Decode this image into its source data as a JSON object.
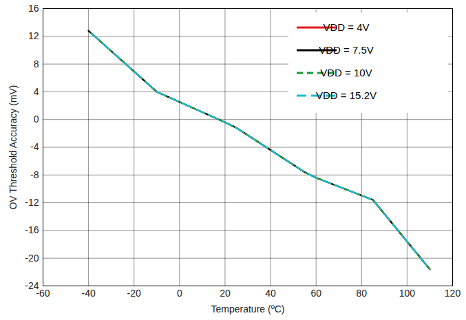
{
  "chart_data": {
    "type": "line",
    "x_label": "Temperature (ºC)",
    "y_label": "OV Threshold Accuracy (mV)",
    "x": [
      -40,
      -10,
      20,
      25,
      55,
      60,
      85,
      110
    ],
    "series": [
      {
        "name": "VDD = 4V",
        "color": "#e41a1c",
        "line_style": "solid",
        "values": [
          12.8,
          4.0,
          -0.4,
          -1.2,
          -7.6,
          -8.4,
          -11.6,
          -21.6
        ]
      },
      {
        "name": "VDD = 7.5V",
        "color": "#000000",
        "line_style": "solid",
        "values": [
          12.8,
          4.0,
          -0.4,
          -1.2,
          -7.6,
          -8.4,
          -11.6,
          -21.6
        ]
      },
      {
        "name": "VDD = 10V",
        "color": "#1a9a3a",
        "line_style": "dashed",
        "values": [
          12.8,
          4.0,
          -0.4,
          -1.2,
          -7.6,
          -8.4,
          -11.6,
          -21.6
        ]
      },
      {
        "name": "VDD = 15.2V",
        "color": "#17becf",
        "line_style": "dashed",
        "values": [
          12.8,
          4.0,
          -0.4,
          -1.2,
          -7.6,
          -8.4,
          -11.6,
          -21.6
        ]
      }
    ],
    "xlim": [
      -60,
      120
    ],
    "xticks": [
      -60,
      -40,
      -20,
      0,
      20,
      40,
      60,
      80,
      100,
      120
    ],
    "ylim": [
      -24,
      16
    ],
    "yticks": [
      -24,
      -20,
      -16,
      -12,
      -8,
      -4,
      0,
      4,
      8,
      12,
      16
    ],
    "grid": true,
    "legend": "upper right"
  }
}
